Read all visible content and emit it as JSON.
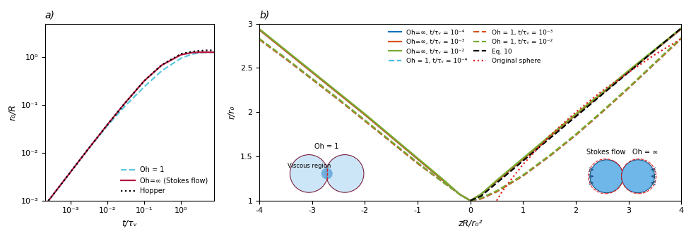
{
  "chart_data": [
    {
      "type": "line",
      "title": "a)",
      "x_label": "t/τᵥ",
      "y_label": "r₀/R",
      "log": true,
      "xlim": [
        0.0002,
        8
      ],
      "ylim": [
        0.001,
        5
      ],
      "xticks": [
        {
          "value": 0.001,
          "label": "10⁻³"
        },
        {
          "value": 0.01,
          "label": "10⁻²"
        },
        {
          "value": 0.1,
          "label": "10⁻¹"
        },
        {
          "value": 1,
          "label": "10⁰"
        }
      ],
      "yticks": [
        {
          "value": 0.001,
          "label": "10⁻³"
        },
        {
          "value": 0.01,
          "label": "10⁻²"
        },
        {
          "value": 0.1,
          "label": "10⁻¹"
        },
        {
          "value": 1,
          "label": "10⁰"
        }
      ],
      "grid": false,
      "legend": "lower right",
      "series": [
        {
          "name": "Oh = 1",
          "color": "#5BC8E0",
          "line_style": "dashed",
          "x": [
            0.00025,
            0.001,
            0.003,
            0.01,
            0.03,
            0.1,
            0.3,
            1,
            2,
            3,
            5,
            8
          ],
          "values": [
            0.001,
            0.004,
            0.012,
            0.037,
            0.095,
            0.24,
            0.52,
            0.95,
            1.15,
            1.22,
            1.26,
            1.26
          ]
        },
        {
          "name": "Oh=∞ (Stokes flow)",
          "color": "#B5123E",
          "line_style": "solid",
          "x": [
            0.00025,
            0.001,
            0.003,
            0.01,
            0.03,
            0.1,
            0.3,
            1,
            2,
            3,
            5,
            8
          ],
          "values": [
            0.001,
            0.004,
            0.012,
            0.039,
            0.11,
            0.32,
            0.68,
            1.12,
            1.24,
            1.26,
            1.26,
            1.26
          ]
        },
        {
          "name": "Hopper",
          "color": "#000000",
          "line_style": "dotted",
          "x": [
            0.00025,
            0.001,
            0.003,
            0.01,
            0.03,
            0.1,
            0.3,
            1,
            2,
            3,
            5,
            8
          ],
          "values": [
            0.001,
            0.004,
            0.012,
            0.039,
            0.11,
            0.32,
            0.69,
            1.17,
            1.3,
            1.35,
            1.38,
            1.39
          ]
        }
      ]
    },
    {
      "type": "line",
      "title": "b)",
      "x_label": "zR/r₀²",
      "y_label": "r/r₀",
      "xlim": [
        -4,
        4
      ],
      "ylim": [
        1,
        3
      ],
      "xticks": [
        -4,
        -3,
        -2,
        -1,
        0,
        1,
        2,
        3,
        4
      ],
      "yticks": [
        1,
        1.5,
        2,
        2.5,
        3
      ],
      "grid": false,
      "legend": "upper center",
      "annotations": [
        "Oh = 1",
        "Viscous region",
        "Stokes flow",
        "Oh = ∞"
      ],
      "series": [
        {
          "name": "Oh=∞, t/τᵥ = 10⁻⁴",
          "color": "#0072BD",
          "line_style": "solid",
          "x": [
            -4,
            -3.5,
            -3,
            -2.5,
            -2,
            -1.5,
            -1,
            -0.5,
            -0.2,
            0,
            0.2,
            0.5,
            1,
            1.5,
            2,
            2.5,
            3,
            3.5,
            4
          ],
          "values": [
            2.93,
            2.69,
            2.45,
            2.21,
            1.97,
            1.72,
            1.47,
            1.22,
            1.07,
            1,
            1.07,
            1.22,
            1.47,
            1.72,
            1.97,
            2.21,
            2.46,
            2.7,
            2.94
          ]
        },
        {
          "name": "Oh=∞, t/τᵥ = 10⁻³",
          "color": "#D95319",
          "line_style": "solid",
          "x": [
            -4,
            -3.5,
            -3,
            -2.5,
            -2,
            -1.5,
            -1,
            -0.5,
            -0.2,
            0,
            0.2,
            0.5,
            1,
            1.5,
            2,
            2.5,
            3,
            3.5,
            4
          ],
          "values": [
            2.93,
            2.69,
            2.45,
            2.21,
            1.97,
            1.72,
            1.47,
            1.22,
            1.07,
            1,
            1.07,
            1.22,
            1.47,
            1.72,
            1.97,
            2.21,
            2.46,
            2.7,
            2.94
          ]
        },
        {
          "name": "Oh=∞, t/τᵥ = 10⁻²",
          "color": "#77AC30",
          "line_style": "solid",
          "x": [
            -4,
            -3.5,
            -3,
            -2.5,
            -2,
            -1.5,
            -1,
            -0.5,
            -0.2,
            0,
            0.2,
            0.5,
            1,
            1.5,
            2,
            2.5,
            3,
            3.5,
            4
          ],
          "values": [
            2.94,
            2.7,
            2.46,
            2.22,
            1.98,
            1.73,
            1.48,
            1.23,
            1.07,
            1,
            1.07,
            1.23,
            1.48,
            1.73,
            1.98,
            2.22,
            2.47,
            2.71,
            2.95
          ]
        },
        {
          "name": "Oh = 1, t/τᵥ = 10⁻⁴",
          "color": "#4DBEEE",
          "line_style": "dashed",
          "x": [
            -4,
            -3.5,
            -3,
            -2.5,
            -2,
            -1.5,
            -1,
            -0.5,
            -0.2,
            0,
            0.2,
            0.5,
            1,
            1.5,
            2,
            2.5,
            3,
            3.5,
            4
          ],
          "values": [
            2.82,
            2.6,
            2.37,
            2.14,
            1.9,
            1.66,
            1.42,
            1.2,
            1.07,
            1,
            1.02,
            1.1,
            1.28,
            1.5,
            1.74,
            2.0,
            2.27,
            2.55,
            2.83
          ]
        },
        {
          "name": "Oh = 1, t/τᵥ = 10⁻³",
          "color": "#D95319",
          "line_style": "dashed",
          "x": [
            -4,
            -3.5,
            -3,
            -2.5,
            -2,
            -1.5,
            -1,
            -0.5,
            -0.2,
            0,
            0.2,
            0.5,
            1,
            1.5,
            2,
            2.5,
            3,
            3.5,
            4
          ],
          "values": [
            2.82,
            2.6,
            2.37,
            2.14,
            1.9,
            1.66,
            1.42,
            1.2,
            1.07,
            1,
            1.02,
            1.1,
            1.28,
            1.5,
            1.74,
            2.0,
            2.27,
            2.55,
            2.83
          ]
        },
        {
          "name": "Oh = 1, t/τᵥ = 10⁻²",
          "color": "#77AC30",
          "line_style": "dashed",
          "x": [
            -4,
            -3.5,
            -3,
            -2.5,
            -2,
            -1.5,
            -1,
            -0.5,
            -0.2,
            0,
            0.2,
            0.5,
            1,
            1.5,
            2,
            2.5,
            3,
            3.5,
            4
          ],
          "values": [
            2.83,
            2.61,
            2.38,
            2.15,
            1.91,
            1.67,
            1.43,
            1.2,
            1.07,
            1,
            1.03,
            1.11,
            1.29,
            1.51,
            1.75,
            2.01,
            2.28,
            2.56,
            2.84
          ]
        },
        {
          "name": "Eq. 10",
          "color": "#000000",
          "line_style": "dashed",
          "x": [
            0,
            0.2,
            0.5,
            1,
            1.5,
            2,
            2.5,
            3,
            3.5,
            4
          ],
          "values": [
            1,
            1.05,
            1.2,
            1.45,
            1.7,
            1.95,
            2.2,
            2.45,
            2.7,
            2.95
          ]
        },
        {
          "name": "Original sphere",
          "color": "#E41A1C",
          "line_style": "dotted",
          "x": [
            0.5,
            0.6,
            0.8,
            1,
            1.5,
            2,
            2.5,
            3,
            3.5,
            4
          ],
          "values": [
            1,
            1.1,
            1.26,
            1.41,
            1.73,
            2,
            2.24,
            2.45,
            2.65,
            2.83
          ]
        }
      ]
    }
  ]
}
